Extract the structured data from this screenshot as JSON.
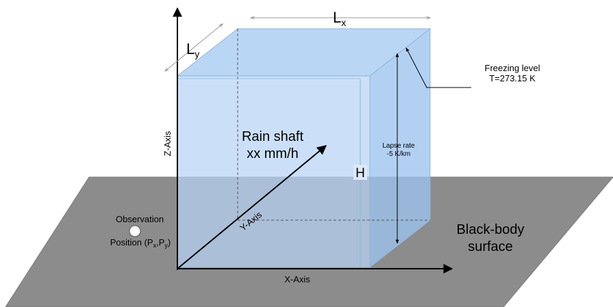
{
  "labels": {
    "lx_main": "L",
    "lx_sub": "x",
    "ly_main": "L",
    "ly_sub": "y",
    "freezing_line1": "Freezing level",
    "freezing_line2": "T=273.15 K",
    "z_axis": "Z-Axis",
    "y_axis": "Y-Axis",
    "x_axis": "X-Axis",
    "rain_line1": "Rain shaft",
    "rain_line2": "xx mm/h",
    "lapse_line1": "Lapse rate",
    "lapse_line2": "-5 K/km",
    "height": "H",
    "obs_line1": "Observation",
    "obs_line2_a": "Position (P",
    "obs_sub_x": "x",
    "obs_comma": ",P",
    "obs_sub_y": "y",
    "obs_close": ")",
    "surface_line1": "Black-body",
    "surface_line2": "surface"
  },
  "colors": {
    "ground": "#8c8c8c",
    "box_front": "#b7d4f5",
    "box_top": "#a9cdf3",
    "box_side": "#9cc3ee",
    "axis": "#000000"
  }
}
